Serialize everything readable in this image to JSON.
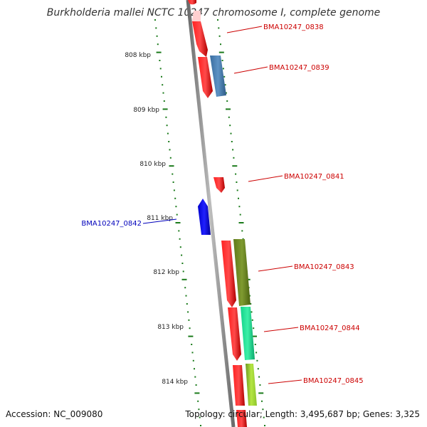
{
  "title": "Burkholderia mallei NCTC 10247 chromosome I, complete genome",
  "footer": {
    "accession": "Accession: NC_009080",
    "summary": "Topology: circular; Length: 3,495,687 bp; Genes: 3,325"
  },
  "colors": {
    "backbone": "#8a8a8a",
    "ticks": "#1a7a1a",
    "forward_label": "#cc0000",
    "reverse_label": "#0000bb"
  },
  "kbp_labels": [
    "808 kbp",
    "809 kbp",
    "810 kbp",
    "811 kbp",
    "812 kbp",
    "813 kbp",
    "814 kbp"
  ],
  "genes": [
    {
      "id": "BMA10247_0838",
      "color": "#cc0000"
    },
    {
      "id": "BMA10247_0839",
      "color": "#cc0000"
    },
    {
      "id": "BMA10247_0841",
      "color": "#cc0000"
    },
    {
      "id": "BMA10247_0842",
      "color": "#0000bb"
    },
    {
      "id": "BMA10247_0843",
      "color": "#cc0000"
    },
    {
      "id": "BMA10247_0844",
      "color": "#cc0000"
    },
    {
      "id": "BMA10247_0845",
      "color": "#cc0000"
    }
  ]
}
